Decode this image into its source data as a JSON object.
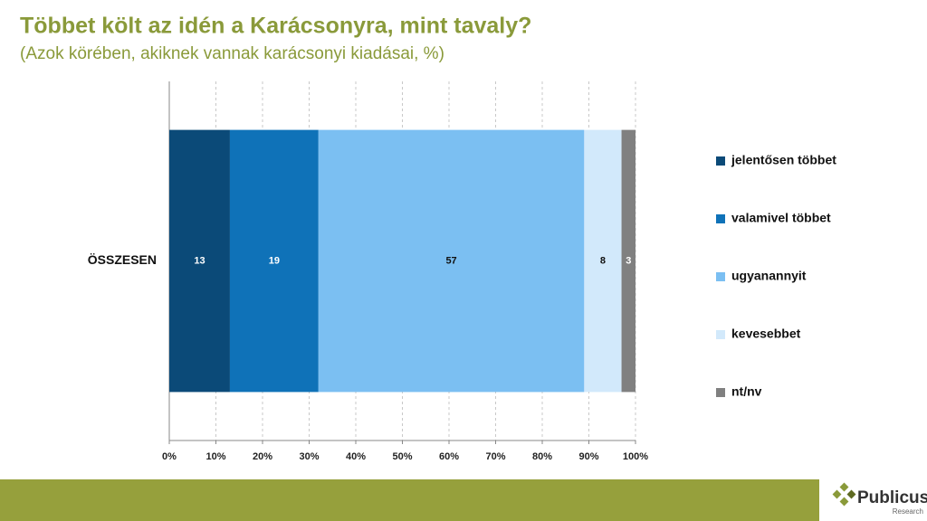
{
  "chart_data": {
    "type": "stacked-bar-horizontal",
    "title": "Többet költ az idén a Karácsonyra, mint tavaly?",
    "subtitle": "(Azok körében, akiknek vannak karácsonyi kiadásai, %)",
    "categories": [
      "ÖSSZESEN"
    ],
    "series": [
      {
        "name": "jelentősen többet",
        "color": "#0b4a78",
        "label_color": "#ffffff",
        "values": [
          13
        ]
      },
      {
        "name": "valamivel többet",
        "color": "#0f72b8",
        "label_color": "#ffffff",
        "values": [
          19
        ]
      },
      {
        "name": "ugyanannyit",
        "color": "#7bbff2",
        "label_color": "#111111",
        "values": [
          57
        ]
      },
      {
        "name": "kevesebbet",
        "color": "#d2e9fb",
        "label_color": "#111111",
        "values": [
          8
        ]
      },
      {
        "name": "nt/nv",
        "color": "#808080",
        "label_color": "#ffffff",
        "values": [
          3
        ]
      }
    ],
    "xlim": [
      0,
      100
    ],
    "xticks": [
      {
        "value": 0,
        "label": "0%"
      },
      {
        "value": 10,
        "label": "10%"
      },
      {
        "value": 20,
        "label": "20%"
      },
      {
        "value": 30,
        "label": "30%"
      },
      {
        "value": 40,
        "label": "40%"
      },
      {
        "value": 50,
        "label": "50%"
      },
      {
        "value": 60,
        "label": "60%"
      },
      {
        "value": 70,
        "label": "70%"
      },
      {
        "value": 80,
        "label": "80%"
      },
      {
        "value": 90,
        "label": "90%"
      },
      {
        "value": 100,
        "label": "100%"
      }
    ],
    "grid": true,
    "legend": "right"
  },
  "logo": {
    "name": "Publicus",
    "tagline": "Research"
  }
}
